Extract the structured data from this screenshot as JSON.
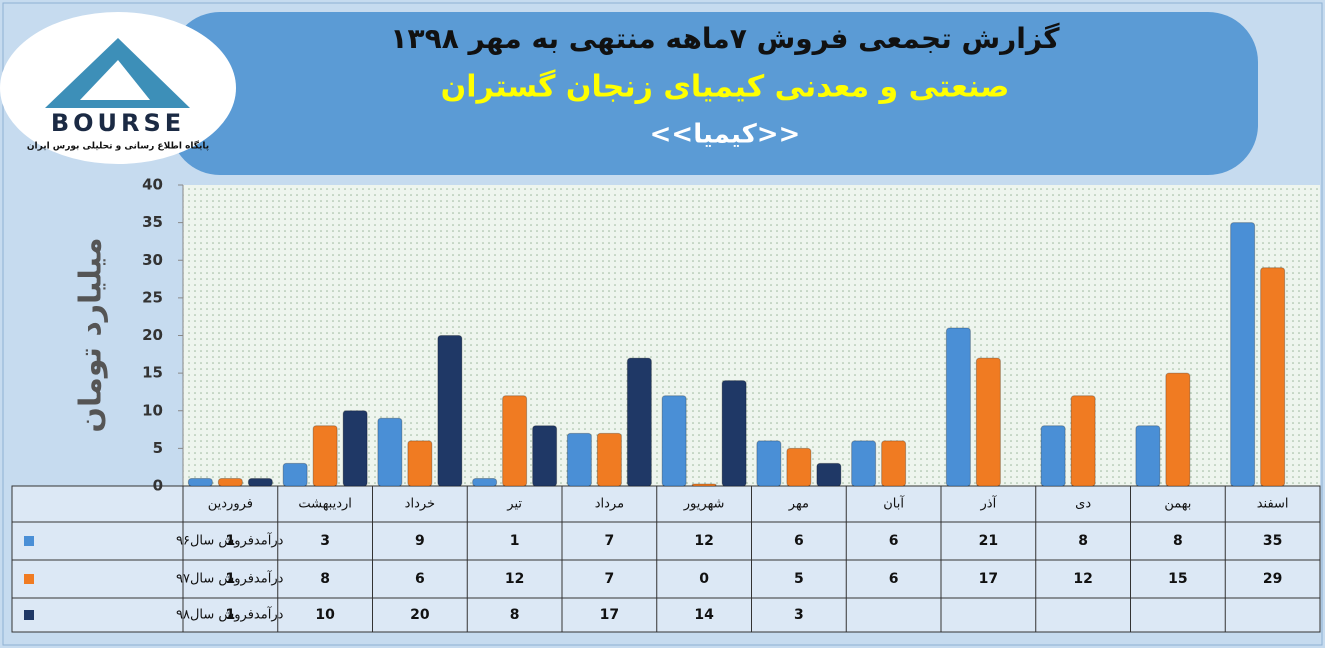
{
  "chart_data": {
    "type": "bar",
    "title": "گزارش تجمعی فروش ۷ماهه منتهی به مهر ۱۳۹۸",
    "subtitle": "صنعتی و معدنی کیمیای زنجان گستران",
    "symbol": "<<کیمیا>>",
    "logo_text": "BOURSE",
    "logo_caption": "پایگاه اطلاع رسانی و تحلیلی بورس ایران",
    "y_label": "میلیارد تومان",
    "categories": [
      "فروردین",
      "اردیبهشت",
      "خرداد",
      "تیر",
      "مرداد",
      "شهریور",
      "مهر",
      "آبان",
      "آذر",
      "دی",
      "بهمن",
      "اسفند"
    ],
    "series": [
      {
        "name": "درآمدفروش سال۹۶",
        "color": "#4a8fd6",
        "values": [
          1,
          3,
          9,
          1,
          7,
          12,
          6,
          6,
          21,
          8,
          8,
          35
        ]
      },
      {
        "name": "درآمدفروش سال۹۷",
        "color": "#f07b22",
        "values": [
          1,
          8,
          6,
          12,
          7,
          0,
          5,
          6,
          17,
          12,
          15,
          29
        ]
      },
      {
        "name": "درآمدفروش سال۹۸",
        "color": "#1f3866",
        "values": [
          1,
          10,
          20,
          8,
          17,
          14,
          3,
          null,
          null,
          null,
          null,
          null
        ]
      }
    ],
    "ylim": [
      0,
      40
    ],
    "yticks": [
      0,
      5,
      10,
      15,
      20,
      25,
      30,
      35,
      40
    ],
    "grid": false
  }
}
